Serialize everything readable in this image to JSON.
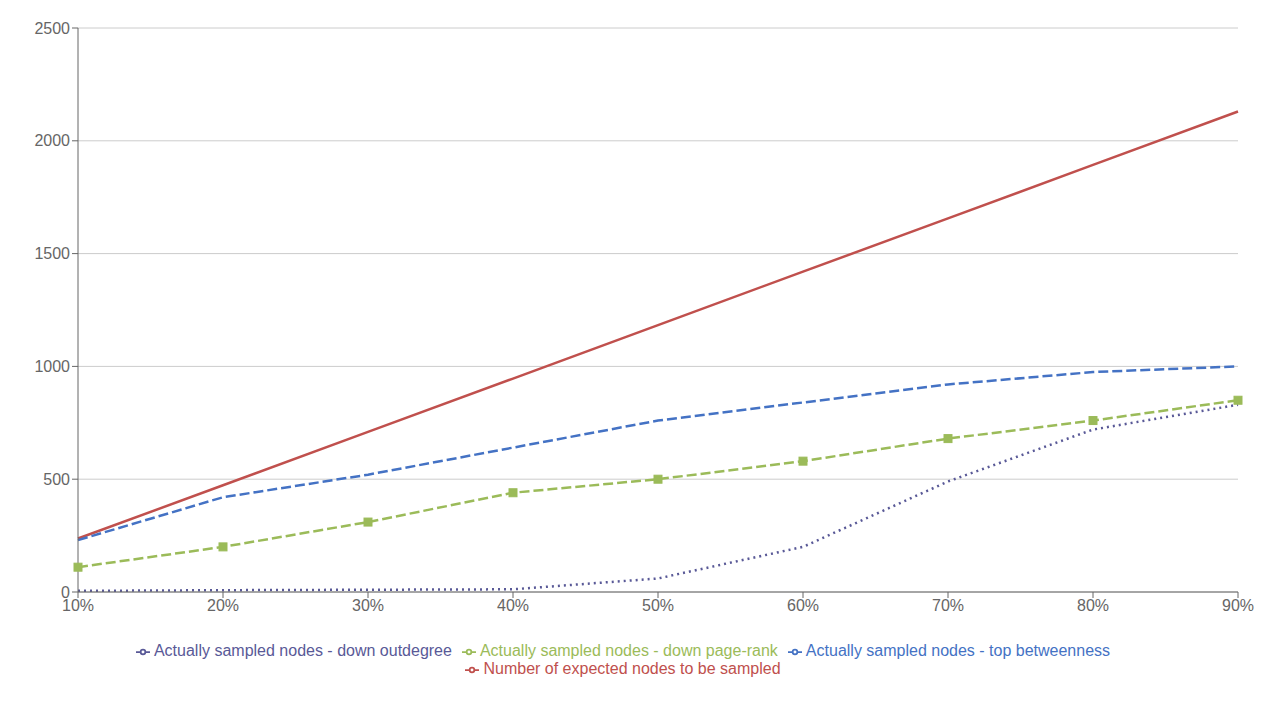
{
  "chart_data": {
    "type": "line",
    "categories": [
      "10%",
      "20%",
      "30%",
      "40%",
      "50%",
      "60%",
      "70%",
      "80%",
      "90%"
    ],
    "series": [
      {
        "name": "Number of expected nodes to be sampled",
        "color": "#C0504D",
        "line_style": "solid",
        "values": [
          237,
          473,
          710,
          946,
          1183,
          1420,
          1656,
          1893,
          2130
        ]
      },
      {
        "name": "Actually sampled nodes - top betweenness",
        "color": "#4472C4",
        "line_style": "dashed",
        "values": [
          230,
          420,
          520,
          640,
          760,
          840,
          920,
          975,
          1000
        ]
      },
      {
        "name": "Actually sampled nodes - down page-rank",
        "color": "#9BBB59",
        "line_style": "dashed",
        "marker": "square",
        "values": [
          110,
          200,
          310,
          440,
          500,
          580,
          680,
          760,
          850
        ]
      },
      {
        "name": "Actually sampled nodes - down outdegree",
        "color": "#595997",
        "line_style": "dotted",
        "values": [
          5,
          8,
          10,
          12,
          60,
          200,
          490,
          720,
          830
        ]
      }
    ],
    "ylim": [
      0,
      2500
    ],
    "yticks": [
      0,
      500,
      1000,
      1500,
      2000,
      2500
    ],
    "grid": "y",
    "legend": "bottom"
  }
}
